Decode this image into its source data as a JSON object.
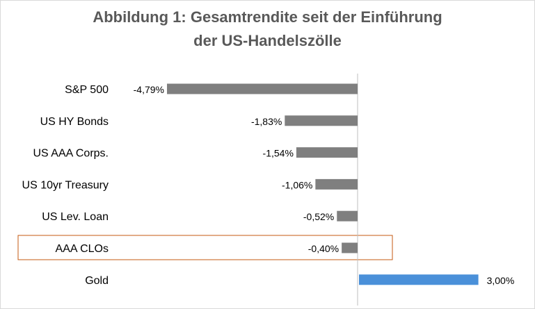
{
  "chart_data": {
    "type": "bar",
    "orientation": "horizontal",
    "title": "Abbildung 1: Gesamtrendite seit der Einführung der US-Handelszölle",
    "title_lines": [
      "Abbildung 1: Gesamtrendite seit der Einführung",
      "der US-Handelszölle"
    ],
    "categories": [
      "S&P 500",
      "US HY Bonds",
      "US AAA Corps.",
      "US 10yr Treasury",
      "US Lev. Loan",
      "AAA CLOs",
      "Gold"
    ],
    "values": [
      -4.79,
      -1.83,
      -1.54,
      -1.06,
      -0.52,
      -0.4,
      3.0
    ],
    "value_labels": [
      "-4,79%",
      "-1,83%",
      "-1,54%",
      "-1,06%",
      "-0,52%",
      "-0,40%",
      "3,00%"
    ],
    "xlabel": "",
    "ylabel": "",
    "unit": "%",
    "xlim": [
      -5.2,
      3.6
    ],
    "grid": false,
    "highlighted_category": "AAA CLOs",
    "colors": {
      "negative": "#7f7f7f",
      "positive": "#4a90d9",
      "highlight_box": "#c55a11",
      "axis": "#bfbfbf",
      "title": "#595959"
    }
  }
}
